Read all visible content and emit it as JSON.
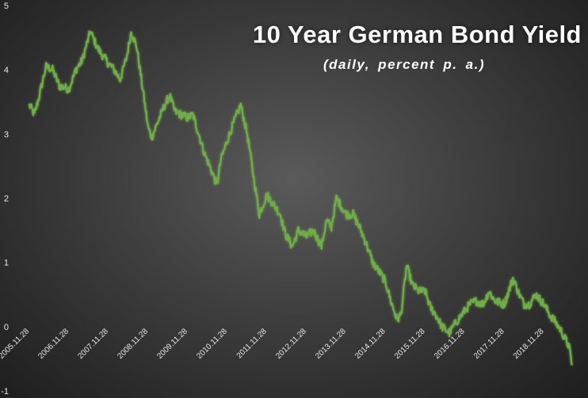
{
  "chart_data": {
    "type": "line",
    "title": "10 Year German Bond Yield",
    "subtitle": "(daily, percent p. a.)",
    "xlabel": "",
    "ylabel": "",
    "ylim": [
      -1,
      5
    ],
    "y_ticks": [
      "5",
      "4",
      "3",
      "2",
      "1",
      "0",
      "-1"
    ],
    "x_tick_labels": [
      "2005.11.28",
      "2006.11.28",
      "2007.11.28",
      "2008.11.28",
      "2009.11.28",
      "2010.11.28",
      "2011.11.28",
      "2012.11.28",
      "2013.11.28",
      "2014.11.28",
      "2015.11.28",
      "2016.11.28",
      "2017.11.28",
      "2018.11.28"
    ],
    "grid": false,
    "legend": "none",
    "series": [
      {
        "color": "#70ad47",
        "x": [
          "2005.11.28",
          "2006.01.15",
          "2006.03.01",
          "2006.05.01",
          "2006.07.01",
          "2006.09.01",
          "2006.11.28",
          "2007.02.01",
          "2007.04.01",
          "2007.06.15",
          "2007.08.15",
          "2007.10.15",
          "2007.11.28",
          "2008.01.20",
          "2008.03.15",
          "2008.05.15",
          "2008.06.25",
          "2008.08.15",
          "2008.10.01",
          "2008.11.28",
          "2009.01.01",
          "2009.03.01",
          "2009.05.01",
          "2009.06.15",
          "2009.08.01",
          "2009.10.01",
          "2009.11.28",
          "2010.01.15",
          "2010.03.01",
          "2010.05.01",
          "2010.07.01",
          "2010.08.25",
          "2010.10.01",
          "2010.11.28",
          "2011.02.01",
          "2011.04.01",
          "2011.06.01",
          "2011.08.01",
          "2011.09.20",
          "2011.11.28",
          "2012.02.01",
          "2012.04.01",
          "2012.05.15",
          "2012.07.20",
          "2012.09.15",
          "2012.11.28",
          "2013.02.01",
          "2013.04.15",
          "2013.06.01",
          "2013.07.15",
          "2013.09.01",
          "2013.11.28",
          "2014.02.01",
          "2014.04.01",
          "2014.06.01",
          "2014.08.01",
          "2014.10.01",
          "2014.11.28",
          "2015.01.15",
          "2015.03.15",
          "2015.04.20",
          "2015.06.10",
          "2015.08.01",
          "2015.10.01",
          "2015.11.28",
          "2016.01.15",
          "2016.03.01",
          "2016.05.01",
          "2016.07.08",
          "2016.09.01",
          "2016.11.28",
          "2017.01.15",
          "2017.03.15",
          "2017.05.15",
          "2017.07.10",
          "2017.09.01",
          "2017.11.28",
          "2018.02.15",
          "2018.04.15",
          "2018.05.29",
          "2018.07.15",
          "2018.09.15",
          "2018.11.28",
          "2019.01.15",
          "2019.03.01",
          "2019.05.01",
          "2019.07.15",
          "2019.08.15"
        ],
        "y": [
          3.45,
          3.3,
          3.6,
          4.05,
          4.0,
          3.75,
          3.7,
          4.0,
          4.15,
          4.6,
          4.35,
          4.2,
          4.1,
          4.0,
          3.85,
          4.2,
          4.6,
          4.35,
          3.8,
          3.1,
          2.95,
          3.2,
          3.45,
          3.6,
          3.35,
          3.3,
          3.25,
          3.3,
          3.05,
          2.7,
          2.45,
          2.2,
          2.6,
          2.9,
          3.2,
          3.45,
          3.0,
          2.3,
          1.75,
          2.05,
          1.9,
          1.75,
          1.45,
          1.25,
          1.5,
          1.4,
          1.5,
          1.25,
          1.65,
          1.55,
          2.0,
          1.75,
          1.75,
          1.55,
          1.3,
          1.0,
          0.85,
          0.7,
          0.4,
          0.1,
          0.2,
          0.95,
          0.65,
          0.55,
          0.55,
          0.3,
          0.2,
          0.0,
          -0.1,
          0.05,
          0.25,
          0.35,
          0.4,
          0.35,
          0.55,
          0.4,
          0.35,
          0.75,
          0.5,
          0.35,
          0.35,
          0.5,
          0.35,
          0.2,
          0.1,
          -0.05,
          -0.3,
          -0.6
        ]
      }
    ]
  }
}
